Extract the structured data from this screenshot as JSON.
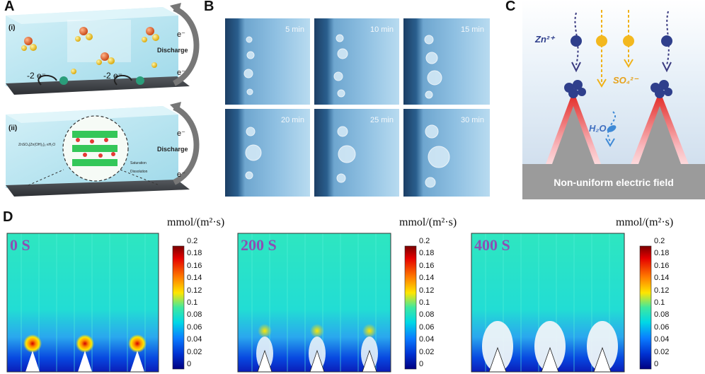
{
  "panel_a": {
    "label": "A",
    "top": {
      "roman": "(i)",
      "e1": "e⁻",
      "e2": "e⁻",
      "discharge": "Discharge",
      "minus2e_left": "-2 e⁻",
      "minus2e_right": "-2 e⁻"
    },
    "bottom": {
      "roman": "(ii)",
      "formula": "ZnSO₄[Zn(OH)₂]₃·xH₂O",
      "e1": "e⁻",
      "e2": "e⁻",
      "discharge": "Discharge",
      "saturation": "Saturation",
      "dissolution": "Dissolution"
    }
  },
  "panel_b": {
    "label": "B",
    "photos": [
      "5 min",
      "10 min",
      "15 min",
      "20 min",
      "25 min",
      "30 min"
    ]
  },
  "panel_c": {
    "label": "C",
    "zn": "Zn²⁺",
    "so4": "SO₄²⁻",
    "h2o": "H₂O",
    "field": "Non-uniform electric field"
  },
  "panel_d": {
    "label": "D",
    "subplots": [
      {
        "time": "0 S",
        "unit": "mmol/(m²·s)"
      },
      {
        "time": "200 S",
        "unit": "mmol/(m²·s)"
      },
      {
        "time": "400 S",
        "unit": "mmol/(m²·s)"
      }
    ],
    "colorbar_ticks": [
      "0.2",
      "0.18",
      "0.16",
      "0.14",
      "0.12",
      "0.1",
      "0.08",
      "0.06",
      "0.04",
      "0.02",
      "0"
    ]
  }
}
